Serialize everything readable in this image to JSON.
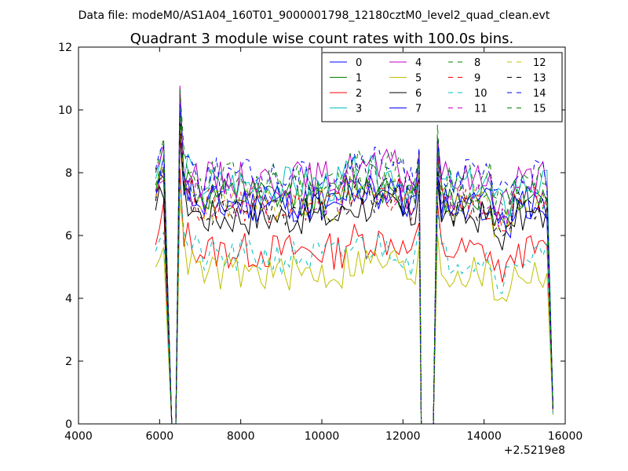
{
  "figure": {
    "suptitle": "Data file: modeM0/AS1A04_160T01_9000001798_12180cztM0_level2_quad_clean.evt",
    "title": "Quadrant 3 module wise count rates with 100.0s bins.",
    "offset_label": "+2.5219e8"
  },
  "chart_data": {
    "type": "line",
    "title": "Quadrant 3 module wise count rates with 100.0s bins.",
    "xlabel": "",
    "ylabel": "",
    "x_offset_label": "+2.5219e8",
    "xlim": [
      4000,
      16000
    ],
    "ylim": [
      0,
      12
    ],
    "x_ticks": [
      4000,
      6000,
      8000,
      10000,
      12000,
      14000,
      16000
    ],
    "y_ticks": [
      0,
      2,
      4,
      6,
      8,
      10,
      12
    ],
    "grid": false,
    "legend_position": "top-right",
    "legend_columns": 4,
    "segments": [
      [
        5900,
        6500
      ],
      [
        6500,
        12400
      ],
      [
        12800,
        15700
      ]
    ],
    "series": [
      {
        "name": "0",
        "color": "#0000ff",
        "dash": false,
        "level": 7.0
      },
      {
        "name": "1",
        "color": "#008000",
        "dash": false,
        "level": 7.2
      },
      {
        "name": "2",
        "color": "#ff0000",
        "dash": false,
        "level": 5.5
      },
      {
        "name": "3",
        "color": "#00bfbf",
        "dash": false,
        "level": 7.6
      },
      {
        "name": "4",
        "color": "#bf00bf",
        "dash": false,
        "level": 7.8
      },
      {
        "name": "5",
        "color": "#bfbf00",
        "dash": false,
        "level": 4.8
      },
      {
        "name": "6",
        "color": "#000000",
        "dash": false,
        "level": 6.6
      },
      {
        "name": "7",
        "color": "#0000ff",
        "dash": false,
        "level": 7.0
      },
      {
        "name": "8",
        "color": "#008000",
        "dash": true,
        "level": 7.8
      },
      {
        "name": "9",
        "color": "#ff0000",
        "dash": true,
        "level": 7.0
      },
      {
        "name": "10",
        "color": "#00bfbf",
        "dash": true,
        "level": 5.3
      },
      {
        "name": "11",
        "color": "#bf00bf",
        "dash": true,
        "level": 7.2
      },
      {
        "name": "12",
        "color": "#bfbf00",
        "dash": true,
        "level": 7.0
      },
      {
        "name": "13",
        "color": "#000000",
        "dash": true,
        "level": 6.9
      },
      {
        "name": "14",
        "color": "#0000ff",
        "dash": true,
        "level": 7.9
      },
      {
        "name": "15",
        "color": "#008000",
        "dash": true,
        "level": 7.4
      }
    ]
  }
}
